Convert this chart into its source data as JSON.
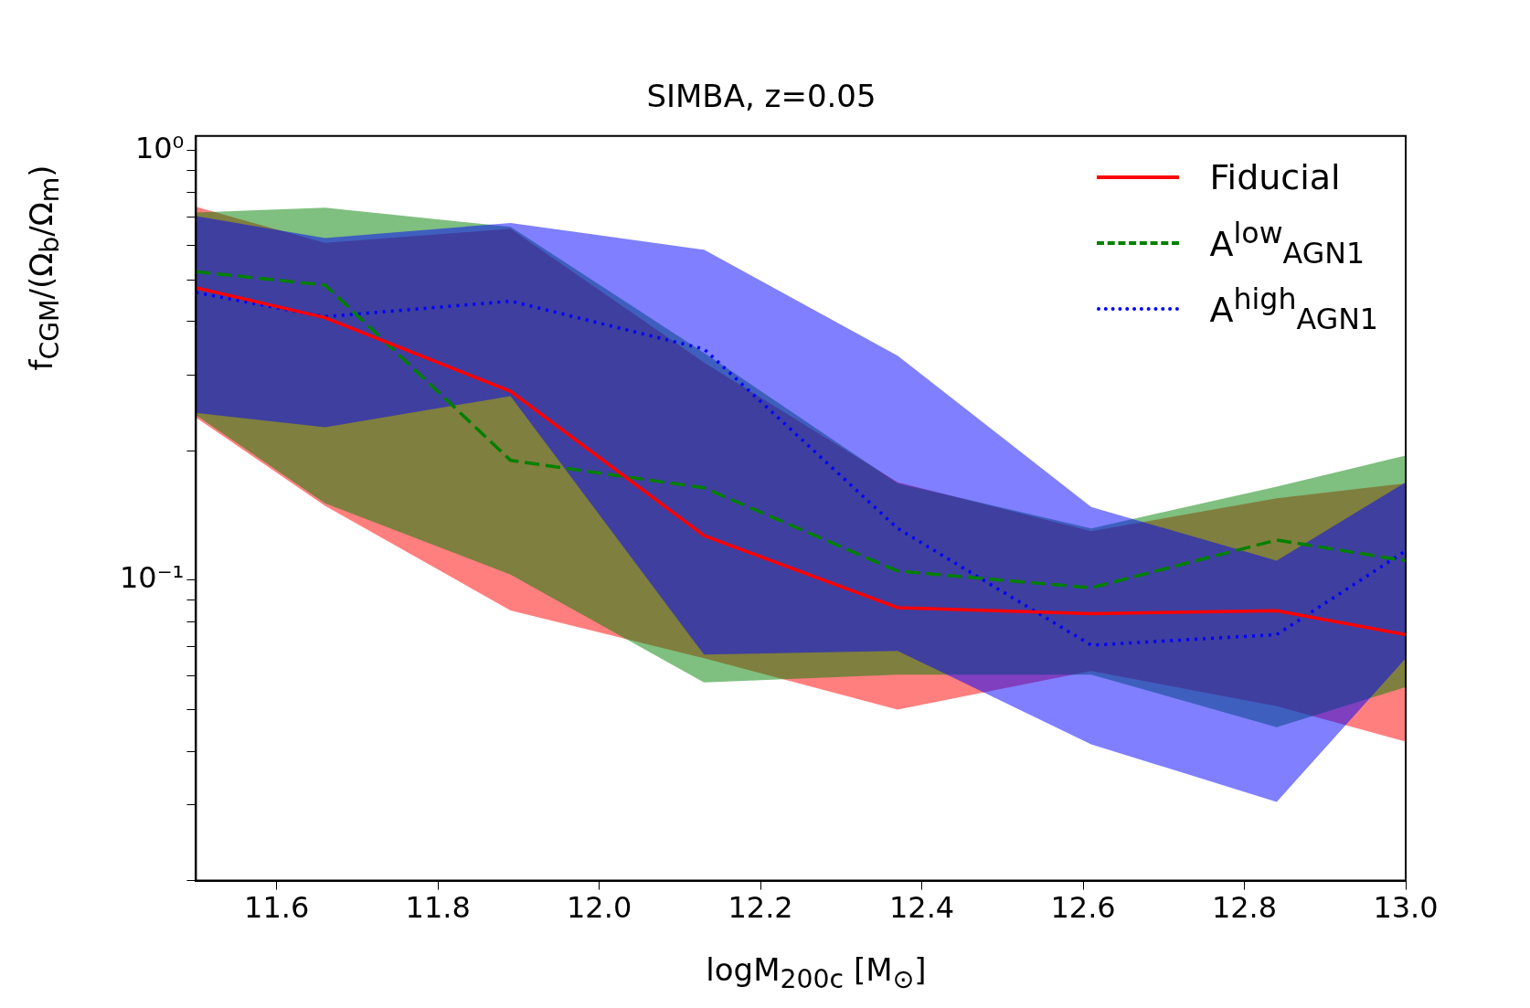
{
  "chart_data": {
    "type": "line",
    "title": "SIMBA, z=0.05",
    "xlabel": "logM$_{200c}$ [M$_{⊙}$]",
    "ylabel": "f$_{CGM}$/(Ω$_{b}$/Ω$_{m}$)",
    "x": [
      11.5,
      11.66,
      11.89,
      12.13,
      12.37,
      12.61,
      12.84,
      13.0
    ],
    "series": [
      {
        "name": "Fiducial",
        "color": "#ff0000",
        "line_style": "solid",
        "values": [
          0.479,
          0.408,
          0.275,
          0.127,
          0.0863,
          0.0836,
          0.0849,
          0.0747
        ],
        "upper": [
          0.739,
          0.609,
          0.657,
          0.321,
          0.169,
          0.13,
          0.155,
          0.168
        ],
        "lower": [
          0.239,
          0.149,
          0.085,
          0.0658,
          0.05,
          0.0615,
          0.0509,
          0.0421
        ]
      },
      {
        "name": "A$^{low}$$_{AGN1}$",
        "color": "#008000",
        "line_style": "dashed",
        "values": [
          0.522,
          0.486,
          0.19,
          0.164,
          0.105,
          0.096,
          0.124,
          0.111
        ],
        "upper": [
          0.717,
          0.736,
          0.664,
          0.338,
          0.168,
          0.132,
          0.165,
          0.195
        ],
        "lower": [
          0.242,
          0.151,
          0.103,
          0.0578,
          0.0603,
          0.0603,
          0.0455,
          0.0564
        ]
      },
      {
        "name": "A$^{high}$$_{AGN1}$",
        "color": "#0000ff",
        "line_style": "dotted",
        "values": [
          0.467,
          0.41,
          0.446,
          0.345,
          0.132,
          0.0706,
          0.0747,
          0.117
        ],
        "upper": [
          0.703,
          0.625,
          0.678,
          0.587,
          0.333,
          0.148,
          0.111,
          0.169
        ],
        "lower": [
          0.245,
          0.227,
          0.268,
          0.0671,
          0.0685,
          0.0415,
          0.0305,
          0.0658
        ]
      }
    ],
    "xlim": [
      11.5,
      13.0
    ],
    "xticks": [
      11.6,
      11.8,
      {
        "value": 12.0,
        "label": "12.0"
      },
      12.2,
      12.4,
      12.6,
      12.8,
      {
        "value": 13.0,
        "label": "13.0"
      }
    ],
    "ylim": [
      0.02,
      1.08
    ],
    "log": "y",
    "yticks": [
      {
        "value": 0.02,
        "label": null
      },
      {
        "value": 0.03,
        "label": null
      },
      {
        "value": 0.04,
        "label": null
      },
      {
        "value": 0.05,
        "label": null
      },
      {
        "value": 0.06,
        "label": null
      },
      {
        "value": 0.07,
        "label": null
      },
      {
        "value": 0.08,
        "label": null
      },
      {
        "value": 0.09,
        "label": null
      },
      {
        "value": 0.1,
        "label": "10⁻¹"
      },
      {
        "value": 0.2,
        "label": null
      },
      {
        "value": 0.3,
        "label": null
      },
      {
        "value": 0.4,
        "label": null
      },
      {
        "value": 0.5,
        "label": null
      },
      {
        "value": 0.6,
        "label": null
      },
      {
        "value": 0.7,
        "label": null
      },
      {
        "value": 0.8,
        "label": null
      },
      {
        "value": 0.9,
        "label": null
      },
      {
        "value": 1,
        "label": "10⁰"
      }
    ],
    "grid": false,
    "legend": "top right",
    "marker": "none"
  }
}
